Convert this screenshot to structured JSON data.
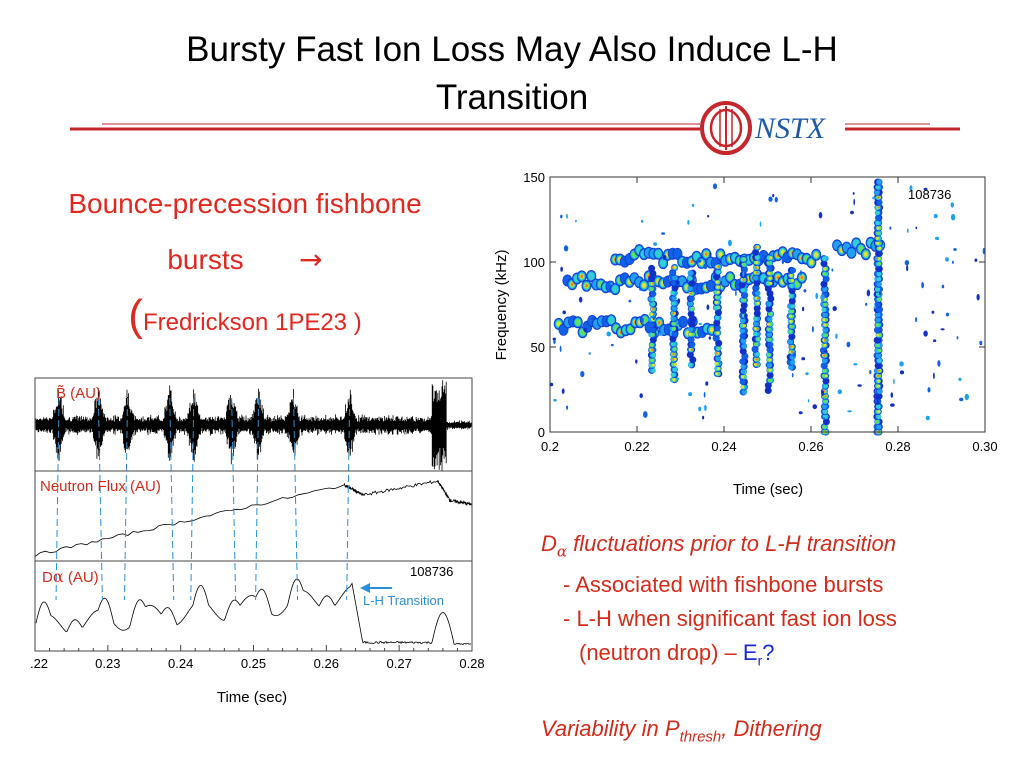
{
  "title": {
    "line1": "Bursty Fast Ion Loss May Also Induce L-H",
    "line2": "Transition"
  },
  "logo": {
    "text": "NSTX",
    "color": "#1e5aa8",
    "ring_color": "#c4262c"
  },
  "left_heading": {
    "line1": "Bounce-precession fishbone",
    "line2": "bursts",
    "arrow": "→",
    "paren_open": "(",
    "reference": "Fredrickson 1PE23 )"
  },
  "timetrace_figure": {
    "panels": [
      {
        "label": "B̃ (AU)",
        "color": "#d42a1a"
      },
      {
        "label": "Neutron Flux (AU)",
        "color": "#d42a1a"
      },
      {
        "label_prefix": "D",
        "label_sub": "α",
        "label_suffix": " (AU)",
        "color": "#d42a1a",
        "shot": "108736"
      }
    ],
    "annotation": {
      "text": "L-H Transition",
      "color": "#2a8fd8"
    },
    "x_tick_labels": [
      ".22",
      "0.23",
      "0.24",
      "0.25",
      "0.26",
      "0.27",
      "0.28"
    ],
    "xlabel": "Time (sec)"
  },
  "spectrogram": {
    "shot": "108736",
    "ylabel": "Frequency (kHz)",
    "xlabel": "Time (sec)",
    "y_tick_labels": [
      "150",
      "100",
      "50",
      "0"
    ],
    "x_tick_labels": [
      "0.2",
      "0.22",
      "0.24",
      "0.26",
      "0.28",
      "0.30"
    ]
  },
  "chart_data": [
    {
      "type": "line",
      "title": "",
      "xlabel": "Time (sec)",
      "ylabel": "",
      "xlim": [
        0.22,
        0.28
      ],
      "series": [
        {
          "name": "B̃ (AU)",
          "burst_times": [
            0.2233,
            0.2287,
            0.2327,
            0.2385,
            0.2418,
            0.247,
            0.2507,
            0.2555,
            0.2632
          ]
        },
        {
          "name": "Neutron Flux (AU)",
          "x": [
            0.22,
            0.2625,
            0.265,
            0.2753,
            0.277,
            0.28
          ],
          "y": [
            0.05,
            0.95,
            0.82,
            1.0,
            0.75,
            0.7
          ]
        },
        {
          "name": "Dα (AU)",
          "x": [
            0.22,
            0.2233,
            0.2287,
            0.2327,
            0.2385,
            0.2418,
            0.247,
            0.2507,
            0.2555,
            0.259,
            0.2632,
            0.265,
            0.2753,
            0.277,
            0.28
          ],
          "y": [
            0.3,
            0.45,
            0.55,
            0.6,
            0.55,
            0.62,
            0.7,
            0.75,
            0.82,
            0.95,
            0.9,
            0.1,
            0.1,
            0.45,
            0.05
          ]
        }
      ],
      "annotations": [
        {
          "text": "L-H Transition",
          "x": 0.2632
        }
      ]
    },
    {
      "type": "heatmap",
      "title": "",
      "xlabel": "Time (sec)",
      "ylabel": "Frequency (kHz)",
      "xlim": [
        0.2,
        0.3
      ],
      "ylim": [
        0,
        150
      ],
      "shot": "108736",
      "bands": [
        {
          "t_start": 0.202,
          "t_end": 0.238,
          "f_center": 62
        },
        {
          "t_start": 0.204,
          "t_end": 0.258,
          "f_center": 88
        },
        {
          "t_start": 0.215,
          "t_end": 0.262,
          "f_center": 103
        },
        {
          "t_start": 0.266,
          "t_end": 0.276,
          "f_center": 108
        }
      ],
      "bursts": [
        0.2235,
        0.2285,
        0.2325,
        0.2385,
        0.2445,
        0.2475,
        0.2505,
        0.2555,
        0.2632,
        0.2755,
        0.2755
      ]
    }
  ],
  "notes": {
    "line1_prefix": "D",
    "line1_sub": "α",
    "line1_text": " fluctuations prior to L-H transition",
    "line2": "- Associated with fishbone bursts",
    "line3": "- L-H when significant fast ion loss",
    "line4_text": "(neutron drop) – ",
    "line4_er": "E",
    "line4_er_sub": "r",
    "line4_q": "?",
    "line5_prefix": "Variability in P",
    "line5_sub": "thresh",
    "line5_suffix": ", Dithering"
  }
}
